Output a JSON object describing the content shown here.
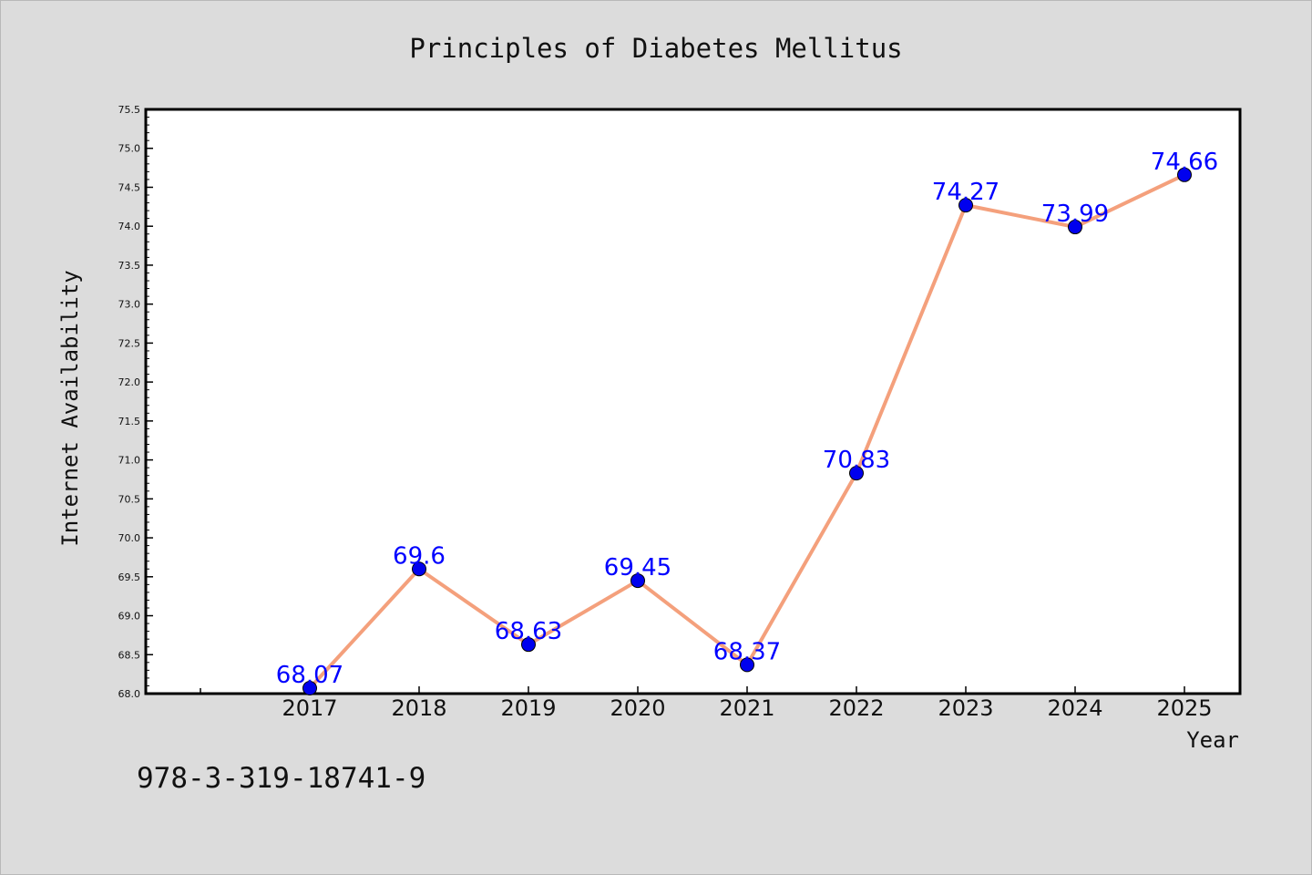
{
  "chart_data": {
    "type": "line",
    "title": "Principles of Diabetes Mellitus",
    "xlabel": "Year",
    "ylabel": "Internet Availability",
    "categories": [
      "2017",
      "2018",
      "2019",
      "2020",
      "2021",
      "2022",
      "2023",
      "2024",
      "2025"
    ],
    "series": [
      {
        "values": [
          68.07,
          69.6,
          68.63,
          69.45,
          68.37,
          70.83,
          74.27,
          73.99,
          74.66
        ],
        "labels": [
          "68.07",
          "69.6",
          "68.63",
          "69.45",
          "68.37",
          "70.83",
          "74.27",
          "73.99",
          "74.66"
        ],
        "line_color": "#f4a07c",
        "marker_color": "#0000ee"
      }
    ],
    "ylim": [
      68.0,
      75.5
    ],
    "yticks": [
      "68.0",
      "68.5",
      "69.0",
      "69.5",
      "70.0",
      "70.5",
      "71.0",
      "71.5",
      "72.0",
      "72.5",
      "73.0",
      "73.5",
      "74.0",
      "74.5",
      "75.0",
      "75.5"
    ],
    "grid": false,
    "legend": "none"
  },
  "footnote": "978-3-319-18741-9"
}
